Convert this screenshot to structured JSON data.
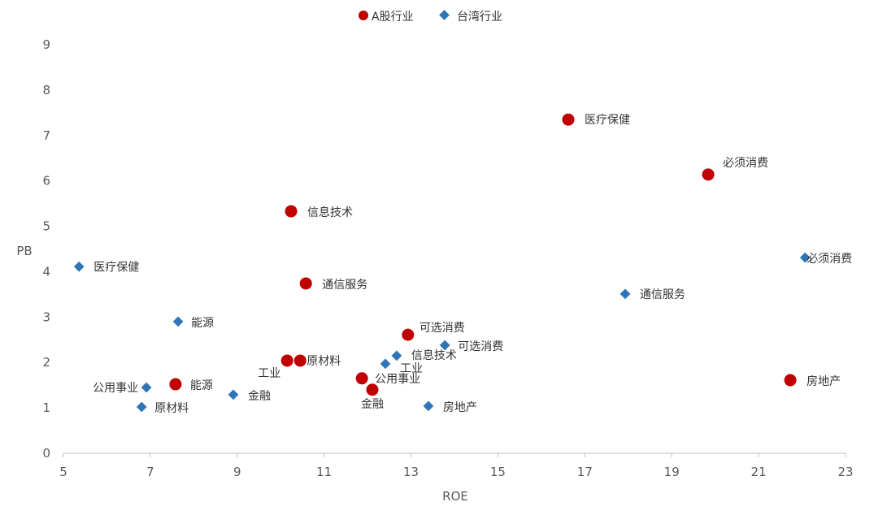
{
  "chart_data": {
    "type": "scatter",
    "title": "",
    "xlabel": "ROE",
    "ylabel": "PB",
    "xlim": [
      5,
      23
    ],
    "ylim": [
      0,
      9
    ],
    "xticks": [
      5,
      7,
      9,
      11,
      13,
      15,
      17,
      19,
      21,
      23
    ],
    "yticks": [
      0,
      1,
      2,
      3,
      4,
      5,
      6,
      7,
      8,
      9
    ],
    "grid": false,
    "legend_position": "top-center",
    "series": [
      {
        "name": "A股行业",
        "color": "#C00000",
        "marker": "circle",
        "points": [
          {
            "label": "医疗保健",
            "x": 16.62,
            "y": 7.35
          },
          {
            "label": "必须消费",
            "x": 19.84,
            "y": 6.14
          },
          {
            "label": "信息技术",
            "x": 10.24,
            "y": 5.33
          },
          {
            "label": "通信服务",
            "x": 10.58,
            "y": 3.74
          },
          {
            "label": "可选消费",
            "x": 12.93,
            "y": 2.61
          },
          {
            "label": "工业",
            "x": 10.15,
            "y": 2.04
          },
          {
            "label": "原材料",
            "x": 10.45,
            "y": 2.04
          },
          {
            "label": "公用事业",
            "x": 11.87,
            "y": 1.65
          },
          {
            "label": "金融",
            "x": 12.11,
            "y": 1.4
          },
          {
            "label": "能源",
            "x": 7.58,
            "y": 1.52
          },
          {
            "label": "房地产",
            "x": 21.73,
            "y": 1.61
          }
        ]
      },
      {
        "name": "台湾行业",
        "color": "#2E75B6",
        "marker": "diamond",
        "points": [
          {
            "label": "医疗保健",
            "x": 5.36,
            "y": 4.11
          },
          {
            "label": "必须消费",
            "x": 22.07,
            "y": 4.31
          },
          {
            "label": "通信服务",
            "x": 17.93,
            "y": 3.51
          },
          {
            "label": "能源",
            "x": 7.64,
            "y": 2.9
          },
          {
            "label": "可选消费",
            "x": 13.78,
            "y": 2.38
          },
          {
            "label": "信息技术",
            "x": 12.67,
            "y": 2.15
          },
          {
            "label": "工业",
            "x": 12.41,
            "y": 1.97
          },
          {
            "label": "公用事业",
            "x": 6.91,
            "y": 1.45
          },
          {
            "label": "金融",
            "x": 8.91,
            "y": 1.29
          },
          {
            "label": "原材料",
            "x": 6.8,
            "y": 1.02
          },
          {
            "label": "房地产",
            "x": 13.4,
            "y": 1.04
          }
        ]
      }
    ]
  }
}
